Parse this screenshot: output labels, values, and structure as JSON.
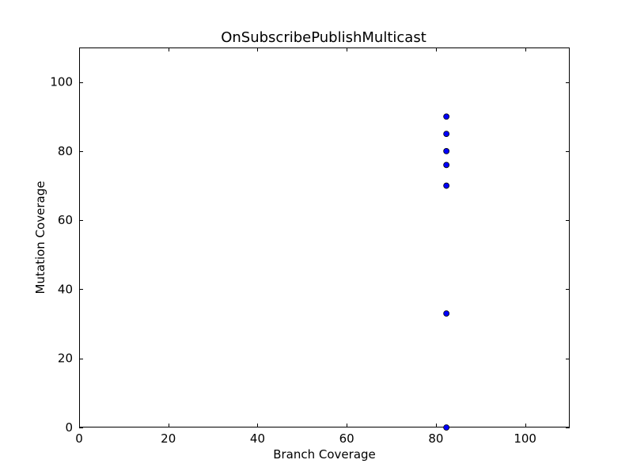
{
  "chart_data": {
    "type": "scatter",
    "title": "OnSubscribePublishMulticast",
    "xlabel": "Branch Coverage",
    "ylabel": "Mutation Coverage",
    "xlim": [
      0,
      110
    ],
    "ylim": [
      0,
      110
    ],
    "xticks": [
      0,
      20,
      40,
      60,
      80,
      100
    ],
    "yticks": [
      0,
      20,
      40,
      60,
      80,
      100
    ],
    "grid": false,
    "marker_color": "#0000ff",
    "marker_edge_color": "#000000",
    "points": [
      {
        "x": 82.35,
        "y": 90
      },
      {
        "x": 82.35,
        "y": 85
      },
      {
        "x": 82.35,
        "y": 80
      },
      {
        "x": 82.35,
        "y": 76
      },
      {
        "x": 82.35,
        "y": 70
      },
      {
        "x": 82.35,
        "y": 33
      },
      {
        "x": 82.35,
        "y": 0
      }
    ]
  }
}
